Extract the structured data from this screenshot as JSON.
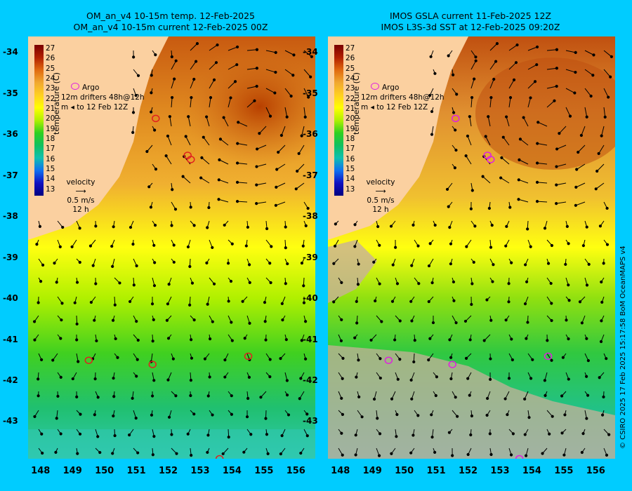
{
  "left": {
    "title_line1": "OM_an_v4  10-15m temp. 12-Feb-2025",
    "title_line2": "OM_an_v4  10-15m current 12-Feb-2025 00Z"
  },
  "right": {
    "title_line1": "IMOS GSLA current 11-Feb-2025 12Z",
    "title_line2": "IMOS L3S-3d SST at 12-Feb-2025 09:20Z"
  },
  "y_ticks": [
    "-34",
    "-35",
    "-36",
    "-37",
    "-38",
    "-39",
    "-40",
    "-41",
    "-42",
    "-43"
  ],
  "x_ticks": [
    "148",
    "149",
    "150",
    "151",
    "152",
    "153",
    "154",
    "155",
    "156"
  ],
  "colorbar": {
    "ticks": [
      "27",
      "26",
      "25",
      "24",
      "23",
      "22",
      "21",
      "20",
      "19",
      "18",
      "17",
      "16",
      "15",
      "14",
      "13"
    ],
    "label": "temperature (C)"
  },
  "legend": {
    "argo": "Argo",
    "drifters_a": "12m",
    "drifters_b": "drifters 48h@12h",
    "drifters_c": "m",
    "drifters_d": "to 12 Feb 12Z"
  },
  "velocity": {
    "title": "velocity",
    "scale": "0.5 m/s",
    "time": "12 h"
  },
  "credit": "© CSIRO 2025   17 Feb 2025 15:17:58 BoM OceanMAPS v4",
  "colors": {
    "background": "#00ccff",
    "land": "#fbd0a0",
    "cloud": "#c8b098",
    "argo_left": "#e02020",
    "argo_right": "#e020e0"
  },
  "argo_floats": [
    {
      "lon": 151.6,
      "lat": -35.6
    },
    {
      "lon": 152.6,
      "lat": -36.5
    },
    {
      "lon": 152.7,
      "lat": -36.6
    },
    {
      "lon": 149.5,
      "lat": -41.5
    },
    {
      "lon": 151.5,
      "lat": -41.6
    },
    {
      "lon": 154.5,
      "lat": -41.4
    },
    {
      "lon": 153.6,
      "lat": -43.9
    }
  ],
  "map_extent": {
    "lon": [
      147.6,
      156.6
    ],
    "lat": [
      -33.6,
      -43.9
    ]
  }
}
